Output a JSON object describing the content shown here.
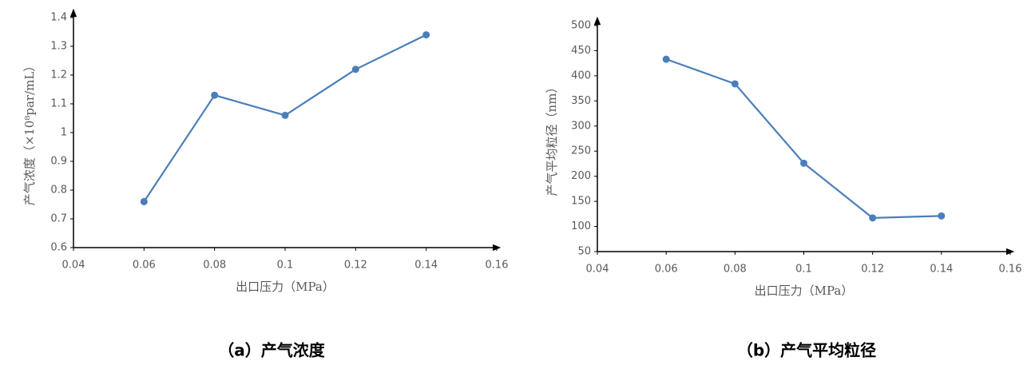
{
  "chart_data": [
    {
      "type": "line",
      "x": [
        0.06,
        0.08,
        0.1,
        0.12,
        0.14
      ],
      "series": [
        {
          "color": "#4a7ebb",
          "values": [
            0.76,
            1.13,
            1.06,
            1.22,
            1.34
          ]
        }
      ],
      "xlim": [
        0.04,
        0.16
      ],
      "xticks": [
        0.04,
        0.06,
        0.08,
        0.1,
        0.12,
        0.14,
        0.16
      ],
      "ylim": [
        0.6,
        1.4
      ],
      "yticks": [
        0.6,
        0.7,
        0.8,
        0.9,
        1,
        1.1,
        1.2,
        1.3,
        1.4
      ],
      "x_label": "出口压力（MPa）",
      "y_label": "产气浓度（×10⁸par/mL）",
      "caption": "（a）产气浓度"
    },
    {
      "type": "line",
      "x": [
        0.06,
        0.08,
        0.1,
        0.12,
        0.14
      ],
      "series": [
        {
          "color": "#4a7ebb",
          "values": [
            433,
            384,
            226,
            117,
            121
          ]
        }
      ],
      "xlim": [
        0.04,
        0.16
      ],
      "xticks": [
        0.04,
        0.06,
        0.08,
        0.1,
        0.12,
        0.14,
        0.16
      ],
      "ylim": [
        50,
        500
      ],
      "yticks": [
        50,
        100,
        150,
        200,
        250,
        300,
        350,
        400,
        450,
        500
      ],
      "x_label": "出口压力（MPa）",
      "y_label": "产气平均粒径（nm）",
      "caption": "（b）产气平均粒径"
    }
  ]
}
